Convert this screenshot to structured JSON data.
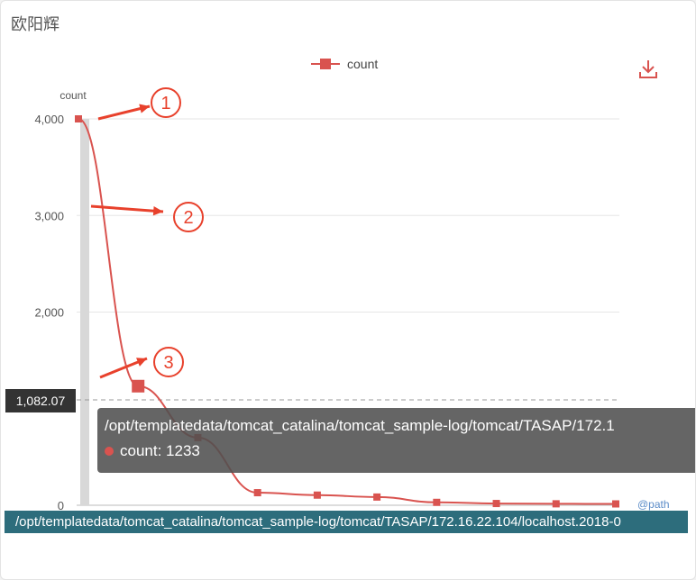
{
  "panel": {
    "title": "欧阳辉"
  },
  "colors": {
    "series": "#d9534f",
    "pointer_bar": "#d0d0d0",
    "tooltip_bg": "#505050",
    "x_label_bg": "#2d6d7c",
    "annotation": "#e8412c"
  },
  "icons": {
    "download": "download-icon"
  },
  "chart_data": {
    "type": "line",
    "title": "",
    "legend": [
      "count"
    ],
    "legend_position": "top-center",
    "xlabel": "@path",
    "ylabel": "count",
    "ylim": [
      0,
      4000
    ],
    "yticks": [
      "4,000",
      "3,000",
      "2,000",
      "0"
    ],
    "grid": true,
    "series": [
      {
        "name": "count",
        "values": [
          4000,
          1233,
          700,
          130,
          105,
          85,
          30,
          18,
          15,
          14
        ]
      }
    ]
  },
  "tooltip": {
    "title": "/opt/templatedata/tomcat_catalina/tomcat_sample-log/tomcat/TASAP/172.1",
    "value_text": "count: 1233"
  },
  "pointer": {
    "y_value": "1,082.07",
    "x_value": "/opt/templatedata/tomcat_catalina/tomcat_sample-log/tomcat/TASAP/172.16.22.104/localhost.2018-0"
  },
  "annotations": [
    "1",
    "2",
    "3"
  ]
}
